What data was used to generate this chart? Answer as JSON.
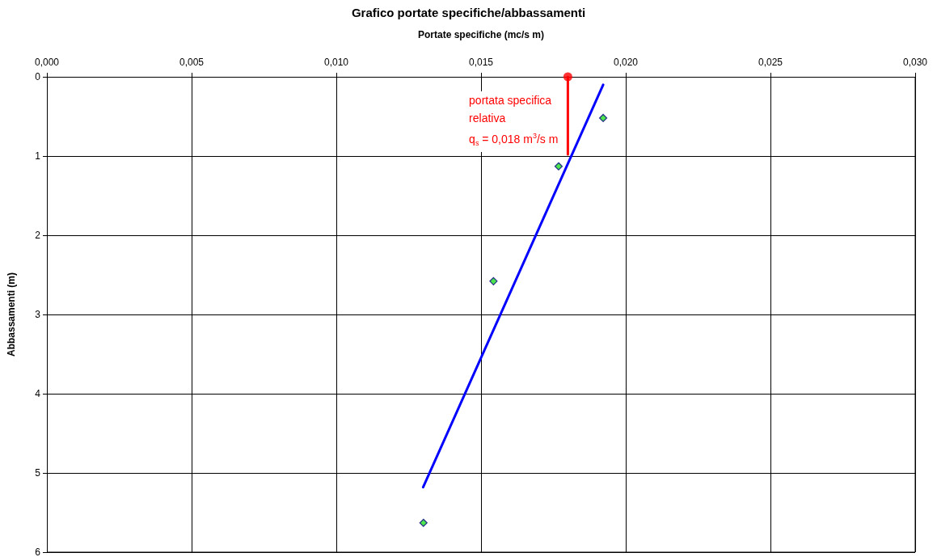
{
  "chart_data": {
    "type": "scatter",
    "title": "Grafico portate specifiche/abbassamenti",
    "xlabel": "Portate specifiche (mc/s m)",
    "ylabel": "Abbassamenti (m)",
    "xlim": [
      0,
      0.03
    ],
    "xticks": [
      {
        "value": 0,
        "label": "0,000"
      },
      {
        "value": 0.005,
        "label": "0,005"
      },
      {
        "value": 0.01,
        "label": "0,010"
      },
      {
        "value": 0.015,
        "label": "0,015"
      },
      {
        "value": 0.02,
        "label": "0,020"
      },
      {
        "value": 0.025,
        "label": "0,025"
      },
      {
        "value": 0.03,
        "label": "0,030"
      }
    ],
    "ylim": [
      6,
      0
    ],
    "yticks": [
      0,
      1,
      2,
      3,
      4,
      5,
      6
    ],
    "grid": true,
    "marker": "diamond",
    "series": [
      {
        "type": "line",
        "color": "#0000ff",
        "marker": "none",
        "x": [
          0.013,
          0.01922
        ],
        "values": [
          5.18,
          0.1
        ]
      },
      {
        "color": "#22dd22",
        "x": [
          0.01922,
          0.01768,
          0.01543,
          0.01301
        ],
        "values": [
          0.52,
          1.13,
          2.58,
          5.63
        ]
      },
      {
        "type": "line",
        "color": "#ff0000",
        "marker": "none",
        "x": [
          0.018,
          0.018
        ],
        "values": [
          0,
          0.98
        ]
      },
      {
        "color": "#ff0000",
        "marker": "circle",
        "x": [
          0.018
        ],
        "values": [
          0
        ]
      }
    ],
    "annotations": [
      {
        "text": "portata specifica\nrelativa\nq$_{s}$ = 0,018 m$^{3}$/s m",
        "x": 0.018,
        "y": 0
      }
    ]
  }
}
